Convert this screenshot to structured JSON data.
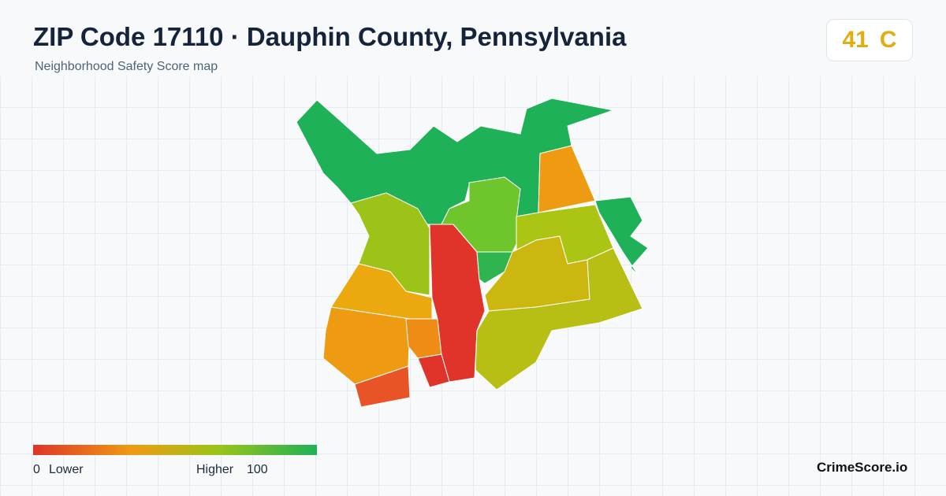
{
  "header": {
    "title": "ZIP Code 17110 · Dauphin County, Pennsylvania",
    "subtitle": "Neighborhood Safety Score map"
  },
  "score": {
    "value": 41,
    "grade": "C"
  },
  "legend": {
    "min": 0,
    "min_label": "Lower",
    "max_label": "Higher",
    "max": 100
  },
  "brand": "CrimeScore.io"
}
